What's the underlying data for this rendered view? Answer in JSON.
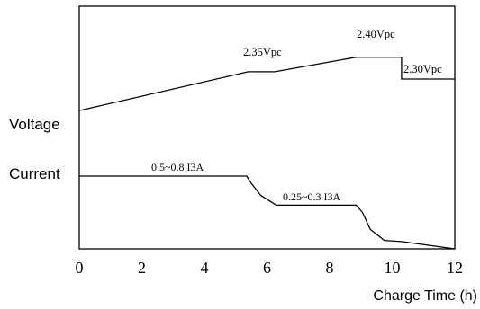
{
  "chart_data": {
    "type": "line",
    "xlabel": "Charge Time (h)",
    "xlim": [
      0,
      12
    ],
    "x_ticks": [
      "0",
      "2",
      "4",
      "6",
      "8",
      "10",
      "12"
    ],
    "series": [
      {
        "name": "Voltage",
        "points": [
          [
            0,
            0.57
          ],
          [
            5.4,
            0.73
          ],
          [
            6.25,
            0.73
          ],
          [
            8.85,
            0.79
          ],
          [
            10.3,
            0.79
          ],
          [
            10.3,
            0.7
          ],
          [
            12,
            0.7
          ]
        ]
      },
      {
        "name": "Current",
        "points": [
          [
            0,
            0.3
          ],
          [
            5.35,
            0.3
          ],
          [
            5.5,
            0.27
          ],
          [
            5.8,
            0.22
          ],
          [
            6.3,
            0.18
          ],
          [
            8.85,
            0.18
          ],
          [
            9.05,
            0.15
          ],
          [
            9.3,
            0.08
          ],
          [
            9.75,
            0.035
          ],
          [
            10.3,
            0.03
          ],
          [
            12,
            0.0
          ]
        ]
      }
    ],
    "annotations": [
      {
        "text": "2.35Vpc",
        "series": "Voltage"
      },
      {
        "text": "2.40Vpc",
        "series": "Voltage"
      },
      {
        "text": "2.30Vpc",
        "series": "Voltage"
      },
      {
        "text": "0.5~0.8 I3A",
        "series": "Current"
      },
      {
        "text": "0.25~0.3 I3A",
        "series": "Current"
      }
    ]
  }
}
